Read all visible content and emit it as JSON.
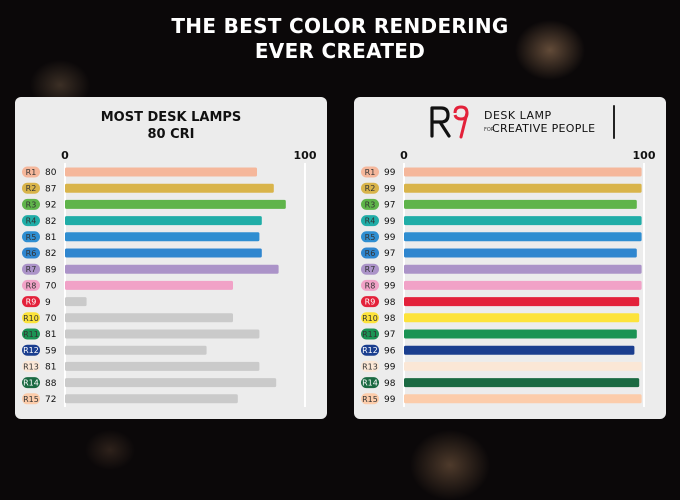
{
  "headline": {
    "line1": "THE BEST COLOR RENDERING",
    "line2": "EVER CREATED"
  },
  "chart_data": [
    {
      "type": "bar",
      "orientation": "horizontal",
      "title_line1": "MOST DESK LAMPS",
      "title_line2": "80 CRI",
      "xlim": [
        0,
        100
      ],
      "tick_labels": [
        "0",
        "100"
      ],
      "categories": [
        "R1",
        "R2",
        "R3",
        "R4",
        "R5",
        "R6",
        "R7",
        "R8",
        "R9",
        "R10",
        "R11",
        "R12",
        "R13",
        "R14",
        "R15"
      ],
      "values": [
        80,
        87,
        92,
        82,
        81,
        82,
        89,
        70,
        9,
        70,
        81,
        59,
        81,
        88,
        72
      ],
      "bar_colors": [
        "#f5b79b",
        "#d9b44a",
        "#5fb44a",
        "#20ada7",
        "#2f8ed1",
        "#2f86cf",
        "#ab93c8",
        "#f1a2c7",
        "#cacaca",
        "#cacaca",
        "#cacaca",
        "#cacaca",
        "#cacaca",
        "#cacaca",
        "#cacaca"
      ]
    },
    {
      "type": "bar",
      "orientation": "horizontal",
      "brand": {
        "logo": "R9",
        "line1": "DESK LAMP",
        "for": "FOR",
        "line2": "CREATIVE PEOPLE"
      },
      "xlim": [
        0,
        100
      ],
      "tick_labels": [
        "0",
        "100"
      ],
      "categories": [
        "R1",
        "R2",
        "R3",
        "R4",
        "R5",
        "R6",
        "R7",
        "R8",
        "R9",
        "R10",
        "R11",
        "R12",
        "R13",
        "R14",
        "R15"
      ],
      "values": [
        99,
        99,
        97,
        99,
        99,
        97,
        99,
        99,
        98,
        98,
        97,
        96,
        99,
        98,
        99
      ],
      "bar_colors": [
        "#f5b79b",
        "#d9b44a",
        "#5fb44a",
        "#20ada7",
        "#2f8ed1",
        "#2f86cf",
        "#ab93c8",
        "#f1a2c7",
        "#e3213a",
        "#fde33a",
        "#1b9354",
        "#1a3e8f",
        "#fbe7d6",
        "#1b6a42",
        "#fcccaa"
      ]
    }
  ],
  "badge_colors": [
    "#f5b79b",
    "#d9b44a",
    "#5fb44a",
    "#20ada7",
    "#2f8ed1",
    "#2f86cf",
    "#ab93c8",
    "#f1a2c7",
    "#e3213a",
    "#fde33a",
    "#1b9354",
    "#1a3e8f",
    "#fbe7d6",
    "#1b6a42",
    "#fcccaa"
  ],
  "badge_text_colors": [
    "#333333",
    "#333333",
    "#333333",
    "#333333",
    "#333333",
    "#333333",
    "#333333",
    "#333333",
    "#ffffff",
    "#333333",
    "#333333",
    "#ffffff",
    "#333333",
    "#ffffff",
    "#333333"
  ]
}
